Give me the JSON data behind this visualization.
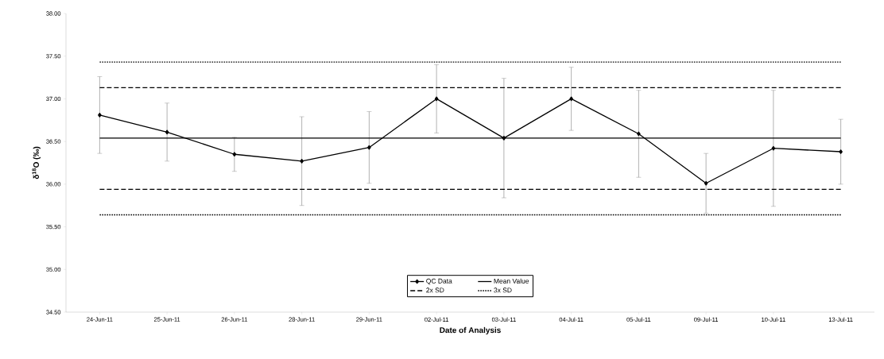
{
  "chart_data": {
    "type": "line",
    "xlabel": "Date of Analysis",
    "ylabel": "δ$^{18}$O  (‰)",
    "categories": [
      "24-Jun-11",
      "25-Jun-11",
      "26-Jun-11",
      "28-Jun-11",
      "29-Jun-11",
      "02-Jul-11",
      "03-Jul-11",
      "04-Jul-11",
      "05-Jul-11",
      "09-Jul-11",
      "10-Jul-11",
      "13-Jul-11"
    ],
    "series": [
      {
        "name": "QC Data",
        "color": "#000000",
        "marker": "diamond",
        "line_style": "solid",
        "values": [
          36.81,
          36.61,
          36.35,
          36.27,
          36.43,
          37.0,
          36.54,
          37.0,
          36.59,
          36.01,
          36.42,
          36.38
        ],
        "errors": [
          0.45,
          0.34,
          0.2,
          0.52,
          0.42,
          0.4,
          0.7,
          0.37,
          0.51,
          0.35,
          0.68,
          0.38
        ]
      }
    ],
    "ref_lines": [
      {
        "axis": "y",
        "value": 36.54,
        "label": "Mean Value",
        "color": "#000000",
        "line_style": "solid"
      },
      {
        "axis": "y",
        "value": 37.13,
        "label": "2x SD",
        "color": "#000000",
        "line_style": "dashed"
      },
      {
        "axis": "y",
        "value": 37.43,
        "label": "3x SD",
        "color": "#000000",
        "line_style": "dotted"
      },
      {
        "axis": "y",
        "value": 35.94,
        "color": "#000000",
        "line_style": "dashed"
      },
      {
        "axis": "y",
        "value": 35.64,
        "color": "#000000",
        "line_style": "dotted"
      }
    ],
    "ylim": [
      34.5,
      38.0
    ],
    "yticks": [
      {
        "value": 34.5,
        "label": "34.50"
      },
      {
        "value": 35.0,
        "label": "35.00"
      },
      {
        "value": 35.5,
        "label": "35.50"
      },
      {
        "value": 36.0,
        "label": "36.00"
      },
      {
        "value": 36.5,
        "label": "36.50"
      },
      {
        "value": 37.0,
        "label": "37.00"
      },
      {
        "value": 37.5,
        "label": "37.50"
      },
      {
        "value": 38.0,
        "label": "38.00"
      }
    ],
    "grid": false,
    "legend": "bottom"
  }
}
